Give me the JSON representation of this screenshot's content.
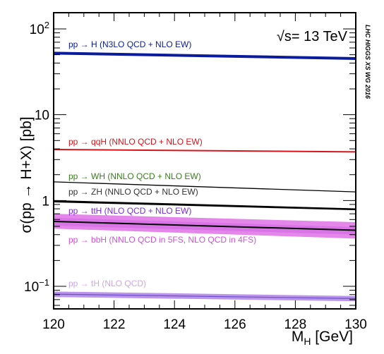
{
  "chart_data": {
    "type": "line",
    "title": "",
    "xlabel": "M_H [GeV]",
    "ylabel": "σ(pp → H+X) [pb]",
    "xlim": [
      120,
      130
    ],
    "ylim": [
      0.05,
      150
    ],
    "yscale": "log",
    "grid": false,
    "x_ticks": [
      "120",
      "122",
      "124",
      "126",
      "128",
      "130"
    ],
    "y_ticks": [
      {
        "value": 100,
        "label": "10^2"
      },
      {
        "value": 10,
        "label": "10"
      },
      {
        "value": 1,
        "label": "1"
      },
      {
        "value": 0.1,
        "label": "10^-1"
      }
    ],
    "annotations": {
      "energy": "√s= 13 TeV",
      "collaboration": "LHC HIGGS XS WG 2016"
    },
    "series": [
      {
        "name": "pp → H (N3LO QCD + NLO EW)",
        "color": "#0a1c9c",
        "x": [
          120,
          130
        ],
        "y": [
          52.2,
          45.2
        ],
        "band": [
          [
            50.9,
            53.5
          ],
          [
            44.1,
            46.3
          ]
        ]
      },
      {
        "name": "pp → qqH (NNLO QCD + NLO EW)",
        "color": "#d4161c",
        "x": [
          120,
          130
        ],
        "y": [
          3.93,
          3.69
        ],
        "band": [
          [
            3.9,
            3.96
          ],
          [
            3.66,
            3.72
          ]
        ]
      },
      {
        "name": "pp → WH (NNLO QCD + NLO EW)",
        "color": "#000000",
        "labelColor": "#3a7d1e",
        "x": [
          120,
          130
        ],
        "y": [
          1.65,
          1.26
        ]
      },
      {
        "name": "pp → ZH (NNLO QCD + NLO EW)",
        "color": "#000000",
        "labelColor": "#333333",
        "x": [
          120,
          130
        ],
        "y": [
          0.98,
          0.79
        ],
        "band": [
          [
            0.95,
            1.01
          ],
          [
            0.77,
            0.81
          ]
        ]
      },
      {
        "name": "pp → ttH (NLO QCD + NLO EW)",
        "color": "#000000",
        "labelColor": "#7a2bd6",
        "x": [
          120,
          130
        ],
        "y": [
          0.57,
          0.45
        ],
        "band": [
          [
            0.51,
            0.63
          ],
          [
            0.4,
            0.49
          ]
        ],
        "bandColor": "#7a2bd6"
      },
      {
        "name": "pp → bbH (NNLO QCD in 5FS, NLO QCD in 4FS)",
        "color": "#e06ee6",
        "labelColor": "#d34ed9",
        "x": [
          120,
          130
        ],
        "y": [
          0.6,
          0.47
        ],
        "band": [
          [
            0.47,
            0.7
          ],
          [
            0.36,
            0.56
          ]
        ],
        "bandColor": "#e27ae8"
      },
      {
        "name": "pp → tH (NLO QCD)",
        "color": "#6f4fc9",
        "labelColor": "#c9a8ec",
        "x": [
          120,
          130
        ],
        "y": [
          0.081,
          0.072
        ],
        "band": [
          [
            0.075,
            0.087
          ],
          [
            0.067,
            0.077
          ]
        ],
        "bandColor": "#b28ae8"
      }
    ]
  }
}
